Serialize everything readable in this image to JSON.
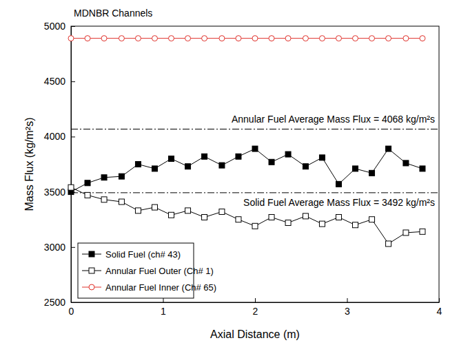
{
  "chart_data": {
    "type": "line",
    "title": "MDNBR Channels",
    "x_label": "Axial Distance (m)",
    "y_label": "Mass Flux (kg/m²s)",
    "x": [
      0,
      0.18,
      0.36,
      0.55,
      0.73,
      0.91,
      1.09,
      1.27,
      1.45,
      1.64,
      1.82,
      2.0,
      2.18,
      2.36,
      2.55,
      2.73,
      2.91,
      3.09,
      3.27,
      3.45,
      3.64,
      3.82
    ],
    "series": [
      {
        "name": "Solid Fuel (ch# 43)",
        "color": "#000000",
        "marker": "filled_square",
        "line_style": "solid",
        "values": [
          3500,
          3580,
          3630,
          3640,
          3750,
          3710,
          3800,
          3730,
          3820,
          3740,
          3820,
          3890,
          3770,
          3840,
          3730,
          3810,
          3570,
          3710,
          3670,
          3890,
          3760,
          3710
        ]
      },
      {
        "name": "Annular Fuel Outer (Ch# 1)",
        "color": "#000000",
        "marker": "open_square",
        "line_style": "solid",
        "values": [
          3540,
          3470,
          3430,
          3410,
          3330,
          3360,
          3290,
          3330,
          3270,
          3320,
          3250,
          3190,
          3270,
          3220,
          3280,
          3210,
          3270,
          3200,
          3250,
          3030,
          3130,
          3140
        ]
      },
      {
        "name": "Annular Fuel Inner (Ch# 65)",
        "color": "#e0302a",
        "marker": "open_circle",
        "line_style": "solid",
        "values": [
          4890,
          4890,
          4890,
          4890,
          4890,
          4890,
          4890,
          4890,
          4890,
          4890,
          4890,
          4890,
          4890,
          4890,
          4890,
          4890,
          4890,
          4890,
          4890,
          4890,
          4890,
          4890
        ]
      }
    ],
    "xlim": [
      0,
      4
    ],
    "ylim": [
      2500,
      5000
    ],
    "xticks": [
      0,
      1,
      2,
      3,
      4
    ],
    "yticks": [
      2500,
      3000,
      3500,
      4000,
      4500,
      5000
    ],
    "grid": false,
    "legend": "lower left",
    "reference_lines": [
      {
        "value": 4068,
        "label": "Annular Fuel Average Mass Flux = 4068 kg/m²s",
        "line_style": "dash-dot",
        "color": "#000000"
      },
      {
        "value": 3492,
        "label": "Solid Fuel Average Mass Flux = 3492 kg/m²s",
        "line_style": "dash-dot",
        "color": "#000000"
      }
    ]
  }
}
